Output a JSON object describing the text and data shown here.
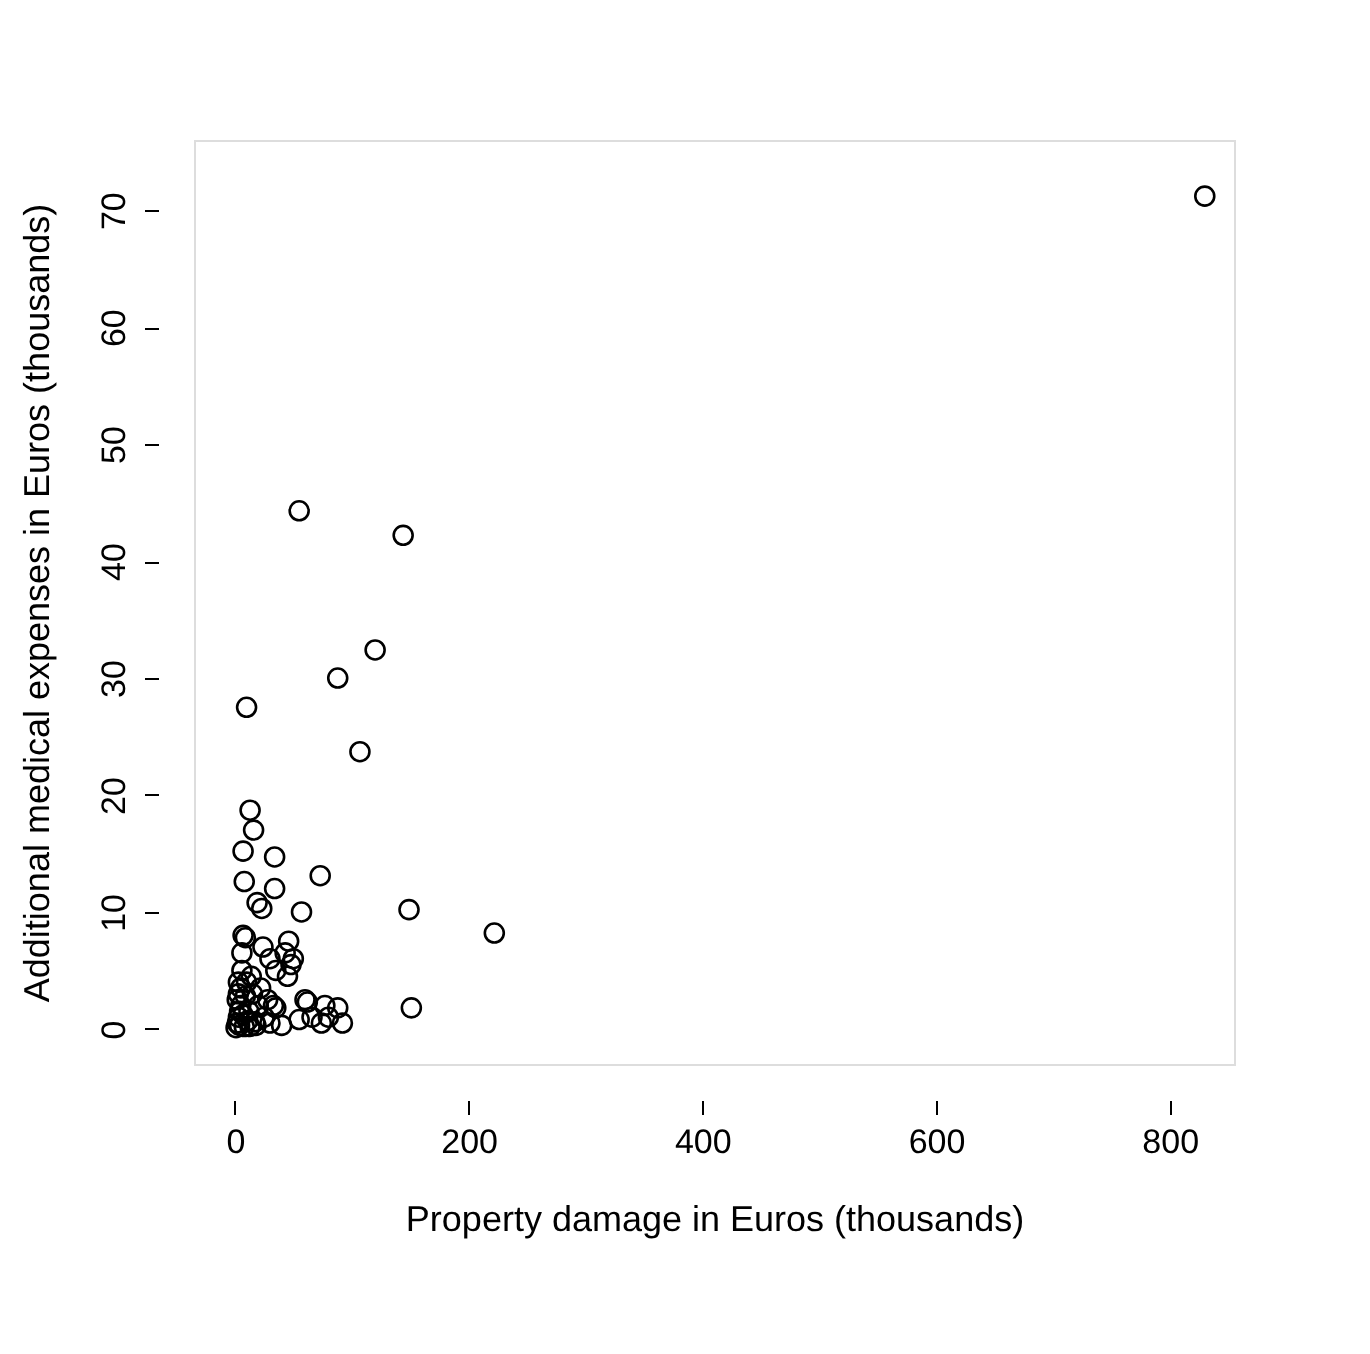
{
  "chart_data": {
    "type": "scatter",
    "xlabel": "Property damage in Euros (thousands)",
    "ylabel": "Additional medical expenses in Euros (thousands)",
    "marker": "circle",
    "grid": false,
    "xlim": [
      -35,
      855
    ],
    "ylim": [
      -3,
      76
    ],
    "xticks": [
      0,
      200,
      400,
      600,
      800
    ],
    "yticks": [
      0,
      10,
      20,
      30,
      40,
      50,
      60,
      70
    ],
    "x": [
      830,
      55,
      144,
      120,
      88,
      10,
      107,
      13,
      16,
      7,
      34,
      73,
      8,
      34,
      19,
      23,
      57,
      149,
      222,
      151,
      7,
      9,
      46,
      43,
      48,
      45,
      50,
      30,
      35,
      10,
      15,
      5,
      3,
      2,
      8,
      12,
      20,
      25,
      18,
      30,
      40,
      62,
      66,
      77,
      80,
      88,
      92,
      74,
      55,
      60,
      3,
      6,
      1,
      4,
      14,
      22,
      28,
      35,
      24,
      33,
      2,
      5,
      9,
      11,
      4,
      7,
      13,
      17,
      6,
      3
    ],
    "series": [
      {
        "color": "#000000",
        "values": [
          71.2,
          44.3,
          42.2,
          32.4,
          30,
          27.5,
          23.7,
          18.7,
          17,
          15.2,
          14.7,
          13.1,
          12.6,
          12,
          10.8,
          10.3,
          10,
          10.2,
          8.2,
          1.8,
          8,
          7.8,
          7.5,
          6.5,
          5.5,
          4.5,
          6,
          6,
          5,
          4,
          3,
          2,
          1,
          0.5,
          0.2,
          1.5,
          2,
          1,
          0.3,
          0.5,
          0.3,
          2.3,
          1,
          2,
          1,
          1.8,
          0.5,
          0.5,
          0.8,
          2.5,
          3,
          5,
          0.1,
          1.5,
          4.5,
          3.5,
          2.5,
          1.8,
          7,
          2,
          2.5,
          3.5,
          2.8,
          0.7,
          0.3,
          1.2,
          0.2,
          0.6,
          6.5,
          4
        ]
      }
    ]
  }
}
